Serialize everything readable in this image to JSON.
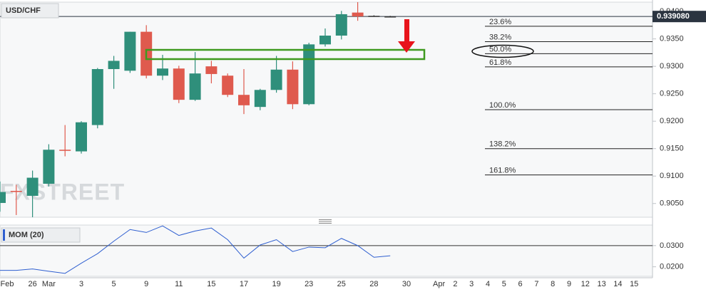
{
  "chart_data": [
    {
      "type": "candlestick",
      "title": "USD/CHF",
      "watermark": "FXSTREET",
      "categories": [
        "Feb",
        null,
        "26",
        "Mar",
        null,
        "3",
        null,
        "5",
        null,
        "9",
        null,
        "11",
        null,
        "15",
        null,
        "17",
        null,
        "19",
        null,
        "23",
        null,
        "25",
        null,
        "28",
        null,
        "30",
        null,
        "Apr",
        "2",
        "3",
        "4",
        "5",
        "6",
        "7",
        "8",
        "9",
        "12",
        "13",
        "14",
        "15"
      ],
      "open": [
        0.9051,
        0.9073,
        0.9064,
        0.9086,
        0.9148,
        0.9145,
        0.9193,
        0.9295,
        0.9292,
        0.9363,
        0.9283,
        0.9296,
        0.9239,
        0.93,
        0.9283,
        0.9248,
        0.9226,
        0.9257,
        0.9294,
        0.9231,
        0.934,
        0.9356,
        0.9398,
        0.9392,
        0.9391,
        null,
        null,
        null,
        null,
        null,
        null,
        null,
        null,
        null,
        null,
        null,
        null,
        null,
        null,
        null
      ],
      "high": [
        0.909,
        0.9084,
        0.911,
        0.9158,
        0.9193,
        0.92,
        0.9297,
        0.9319,
        0.9363,
        0.9375,
        0.9321,
        0.9301,
        0.9326,
        0.931,
        0.9287,
        0.9295,
        0.9259,
        0.9319,
        0.9309,
        0.9343,
        0.9369,
        0.9401,
        0.9417,
        0.9393,
        0.9392,
        null,
        null,
        null,
        null,
        null,
        null,
        null,
        null,
        null,
        null,
        null,
        null,
        null,
        null,
        null
      ],
      "low": [
        0.9035,
        0.9029,
        0.9025,
        0.9081,
        0.9136,
        0.9141,
        0.9187,
        0.9259,
        0.9288,
        0.9278,
        0.9275,
        0.9233,
        0.9237,
        0.9269,
        0.9244,
        0.9213,
        0.922,
        0.9252,
        0.9222,
        0.9229,
        0.9336,
        0.9349,
        0.9383,
        0.9391,
        0.939,
        null,
        null,
        null,
        null,
        null,
        null,
        null,
        null,
        null,
        null,
        null,
        null,
        null,
        null,
        null
      ],
      "close": [
        0.9071,
        0.9071,
        0.9097,
        0.9148,
        0.9146,
        0.9198,
        0.9295,
        0.931,
        0.9363,
        0.9283,
        0.9296,
        0.9239,
        0.9287,
        0.9286,
        0.9248,
        0.9229,
        0.9257,
        0.9294,
        0.9231,
        0.934,
        0.9356,
        0.9395,
        0.9391,
        0.9392,
        0.9391,
        null,
        null,
        null,
        null,
        null,
        null,
        null,
        null,
        null,
        null,
        null,
        null,
        null,
        null,
        null
      ],
      "colors": {
        "up": "#2f8f7b",
        "down": "#df5a4e",
        "flat": "#333333"
      },
      "ylim": [
        0.9025,
        0.9417
      ],
      "yticks": [
        {
          "value": 0.905,
          "label": "0.9050"
        },
        {
          "value": 0.91,
          "label": "0.9100"
        },
        {
          "value": 0.915,
          "label": "0.9150"
        },
        {
          "value": 0.92,
          "label": "0.9200"
        },
        {
          "value": 0.925,
          "label": "0.9250"
        },
        {
          "value": 0.93,
          "label": "0.9300"
        },
        {
          "value": 0.935,
          "label": "0.9350"
        },
        {
          "value": 0.94,
          "label": "0.9400"
        }
      ],
      "fib_levels": [
        {
          "value": 0.9373,
          "label": "23.6%"
        },
        {
          "value": 0.9345,
          "label": "38.2%"
        },
        {
          "value": 0.9323,
          "label": "50.0%"
        },
        {
          "value": 0.9299,
          "label": "61.8%"
        },
        {
          "value": 0.9221,
          "label": "100.0%"
        },
        {
          "value": 0.915,
          "label": "138.2%"
        },
        {
          "value": 0.9102,
          "label": "161.8%"
        }
      ],
      "last_price": {
        "value": 0.93908,
        "label": "0.939080"
      }
    },
    {
      "type": "line",
      "title": "MOM (20)",
      "color": "#2f5fd0",
      "values": [
        0.0183,
        0.0183,
        0.019,
        0.0179,
        0.0169,
        0.0217,
        0.0262,
        0.0321,
        0.0376,
        0.0362,
        0.0393,
        0.0348,
        0.0369,
        0.0383,
        0.0328,
        0.0241,
        0.0303,
        0.0328,
        0.0272,
        0.0293,
        0.029,
        0.0334,
        0.03,
        0.0245,
        0.0252,
        null,
        null,
        null,
        null,
        null,
        null,
        null,
        null,
        null,
        null,
        null,
        null,
        null,
        null,
        null
      ],
      "ylim": [
        0.0155,
        0.0397
      ],
      "yticks": [
        {
          "value": 0.02,
          "label": "0.0200"
        },
        {
          "value": 0.03,
          "label": "0.0300"
        }
      ],
      "reference_line": 0.03
    }
  ]
}
